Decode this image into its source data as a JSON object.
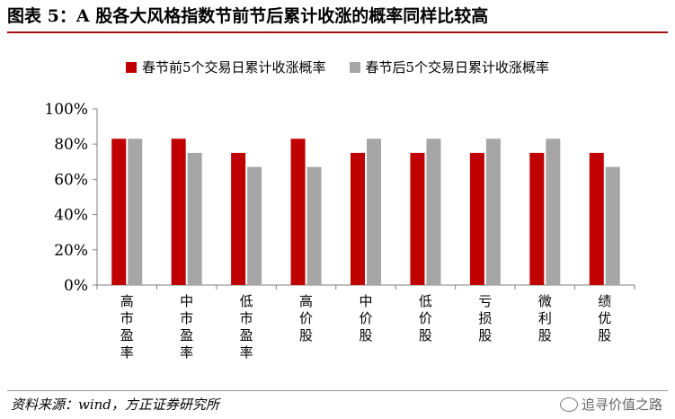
{
  "figure": {
    "title": "图表 5：A 股各大风格指数节前节后累计收涨的概率同样比较高",
    "source": "资料来源：wind，方正证券研究所",
    "watermark": "追寻价值之路"
  },
  "colors": {
    "accent_rule": "#a20f14",
    "series_before": "#c00000",
    "series_after": "#a6a6a6"
  },
  "chart_data": {
    "type": "bar",
    "categories": [
      "高市盈率",
      "中市盈率",
      "低市盈率",
      "高价股",
      "中价股",
      "低价股",
      "亏损股",
      "微利股",
      "绩优股"
    ],
    "series": [
      {
        "name": "春节前5个交易日累计收涨概率",
        "values": [
          83,
          83,
          75,
          83,
          75,
          75,
          75,
          75,
          75
        ]
      },
      {
        "name": "春节后5个交易日累计收涨概率",
        "values": [
          83,
          75,
          67,
          67,
          83,
          83,
          83,
          83,
          67
        ]
      }
    ],
    "ylim": [
      0,
      100
    ],
    "yticks": [
      "0%",
      "20%",
      "40%",
      "60%",
      "80%",
      "100%"
    ],
    "ytick_values": [
      0,
      20,
      40,
      60,
      80,
      100
    ],
    "grid": false,
    "legend_position": "top"
  }
}
